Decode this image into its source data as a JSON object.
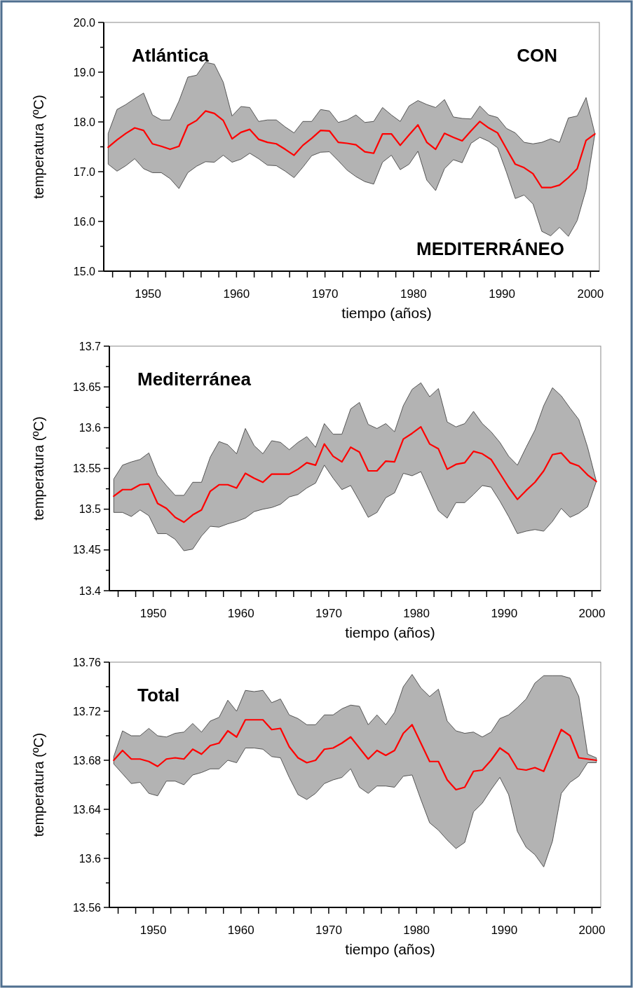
{
  "chart_data": [
    {
      "type": "line",
      "title": "Atlántica",
      "xlabel": "tiempo (años)",
      "ylabel": "temperatura (ºC)",
      "annotations": [
        "CON",
        "MEDITERRÁNEO"
      ],
      "x": [
        1945.5,
        1946.5,
        1947.5,
        1948.5,
        1949.5,
        1950.5,
        1951.5,
        1952.5,
        1953.5,
        1954.5,
        1955.5,
        1956.5,
        1957.5,
        1958.5,
        1959.5,
        1960.5,
        1961.5,
        1962.5,
        1963.5,
        1964.5,
        1965.5,
        1966.5,
        1967.5,
        1968.5,
        1969.5,
        1970.5,
        1971.5,
        1972.5,
        1973.5,
        1974.5,
        1975.5,
        1976.5,
        1977.5,
        1978.5,
        1979.5,
        1980.5,
        1981.5,
        1982.5,
        1983.5,
        1984.5,
        1985.5,
        1986.5,
        1987.5,
        1988.5,
        1989.5,
        1990.5,
        1991.5,
        1992.5,
        1993.5,
        1994.5,
        1995.5,
        1996.5,
        1997.5,
        1998.5,
        1999.5,
        2000.5
      ],
      "xlim": [
        1945,
        2001
      ],
      "xticks": [
        {
          "value": 1946,
          "label": null
        },
        {
          "value": 1948,
          "label": null
        },
        1950,
        {
          "value": 1952,
          "label": null
        },
        {
          "value": 1954,
          "label": null
        },
        {
          "value": 1956,
          "label": null
        },
        {
          "value": 1958,
          "label": null
        },
        1960,
        {
          "value": 1962,
          "label": null
        },
        {
          "value": 1964,
          "label": null
        },
        {
          "value": 1966,
          "label": null
        },
        {
          "value": 1968,
          "label": null
        },
        1970,
        {
          "value": 1972,
          "label": null
        },
        {
          "value": 1974,
          "label": null
        },
        {
          "value": 1976,
          "label": null
        },
        {
          "value": 1978,
          "label": null
        },
        1980,
        {
          "value": 1982,
          "label": null
        },
        {
          "value": 1984,
          "label": null
        },
        {
          "value": 1986,
          "label": null
        },
        {
          "value": 1988,
          "label": null
        },
        1990,
        {
          "value": 1992,
          "label": null
        },
        {
          "value": 1994,
          "label": null
        },
        {
          "value": 1996,
          "label": null
        },
        {
          "value": 1998,
          "label": null
        },
        2000
      ],
      "ylim": [
        15,
        20
      ],
      "yticks": [
        {
          "value": 15,
          "label": "15.0"
        },
        {
          "value": 15.5,
          "label": null
        },
        {
          "value": 16,
          "label": "16.0"
        },
        {
          "value": 16.5,
          "label": null
        },
        {
          "value": 17,
          "label": "17.0"
        },
        {
          "value": 17.5,
          "label": null
        },
        {
          "value": 18,
          "label": "18.0"
        },
        {
          "value": 18.5,
          "label": null
        },
        {
          "value": 19,
          "label": "19.0"
        },
        {
          "value": 19.5,
          "label": null
        },
        {
          "value": 20,
          "label": "20.0"
        }
      ],
      "series": [
        {
          "color": "#ff0000",
          "values": [
            17.49,
            17.64,
            17.77,
            17.88,
            17.83,
            17.56,
            17.51,
            17.45,
            17.51,
            17.93,
            18.03,
            18.22,
            18.17,
            18.03,
            17.66,
            17.79,
            17.85,
            17.65,
            17.59,
            17.56,
            17.45,
            17.33,
            17.53,
            17.67,
            17.83,
            17.82,
            17.59,
            17.57,
            17.54,
            17.4,
            17.37,
            17.76,
            17.76,
            17.53,
            17.74,
            17.94,
            17.59,
            17.45,
            17.77,
            17.69,
            17.62,
            17.82,
            18.01,
            17.88,
            17.78,
            17.46,
            17.15,
            17.08,
            16.96,
            16.68,
            16.68,
            16.73,
            16.88,
            17.06,
            17.63,
            17.76
          ],
          "upper": [
            17.77,
            18.25,
            18.35,
            18.47,
            18.58,
            18.14,
            18.04,
            18.04,
            18.42,
            18.9,
            18.94,
            19.2,
            19.16,
            18.8,
            18.12,
            18.31,
            18.29,
            18.01,
            18.04,
            18.04,
            17.9,
            17.78,
            18.01,
            18.01,
            18.25,
            18.22,
            17.99,
            18.04,
            18.14,
            17.99,
            18.01,
            18.29,
            18.14,
            18.01,
            18.32,
            18.43,
            18.35,
            18.29,
            18.45,
            18.1,
            18.07,
            18.06,
            18.32,
            18.14,
            18.09,
            17.87,
            17.78,
            17.59,
            17.56,
            17.59,
            17.66,
            17.59,
            18.08,
            18.12,
            18.49,
            17.76
          ],
          "lower": [
            17.15,
            17.01,
            17.12,
            17.26,
            17.06,
            16.98,
            16.98,
            16.86,
            16.66,
            16.98,
            17.11,
            17.2,
            17.19,
            17.33,
            17.19,
            17.25,
            17.37,
            17.26,
            17.13,
            17.12,
            17.01,
            16.88,
            17.09,
            17.32,
            17.39,
            17.4,
            17.22,
            17.03,
            16.9,
            16.8,
            16.75,
            17.19,
            17.33,
            17.04,
            17.15,
            17.41,
            16.83,
            16.62,
            17.06,
            17.24,
            17.18,
            17.57,
            17.69,
            17.61,
            17.48,
            16.99,
            16.46,
            16.53,
            16.35,
            15.8,
            15.71,
            15.88,
            15.7,
            16.02,
            16.64,
            17.76
          ]
        }
      ]
    },
    {
      "type": "line",
      "title": "Mediterránea",
      "xlabel": "tiempo (años)",
      "ylabel": "temperatura (ºC)",
      "x": [
        1945.5,
        1946.5,
        1947.5,
        1948.5,
        1949.5,
        1950.5,
        1951.5,
        1952.5,
        1953.5,
        1954.5,
        1955.5,
        1956.5,
        1957.5,
        1958.5,
        1959.5,
        1960.5,
        1961.5,
        1962.5,
        1963.5,
        1964.5,
        1965.5,
        1966.5,
        1967.5,
        1968.5,
        1969.5,
        1970.5,
        1971.5,
        1972.5,
        1973.5,
        1974.5,
        1975.5,
        1976.5,
        1977.5,
        1978.5,
        1979.5,
        1980.5,
        1981.5,
        1982.5,
        1983.5,
        1984.5,
        1985.5,
        1986.5,
        1987.5,
        1988.5,
        1989.5,
        1990.5,
        1991.5,
        1992.5,
        1993.5,
        1994.5,
        1995.5,
        1996.5,
        1997.5,
        1998.5,
        1999.5,
        2000.5
      ],
      "xlim": [
        1945,
        2001
      ],
      "xticks": [
        {
          "value": 1946,
          "label": null
        },
        {
          "value": 1948,
          "label": null
        },
        1950,
        {
          "value": 1952,
          "label": null
        },
        {
          "value": 1954,
          "label": null
        },
        {
          "value": 1956,
          "label": null
        },
        {
          "value": 1958,
          "label": null
        },
        1960,
        {
          "value": 1962,
          "label": null
        },
        {
          "value": 1964,
          "label": null
        },
        {
          "value": 1966,
          "label": null
        },
        {
          "value": 1968,
          "label": null
        },
        1970,
        {
          "value": 1972,
          "label": null
        },
        {
          "value": 1974,
          "label": null
        },
        {
          "value": 1976,
          "label": null
        },
        {
          "value": 1978,
          "label": null
        },
        1980,
        {
          "value": 1982,
          "label": null
        },
        {
          "value": 1984,
          "label": null
        },
        {
          "value": 1986,
          "label": null
        },
        {
          "value": 1988,
          "label": null
        },
        1990,
        {
          "value": 1992,
          "label": null
        },
        {
          "value": 1994,
          "label": null
        },
        {
          "value": 1996,
          "label": null
        },
        {
          "value": 1998,
          "label": null
        },
        2000
      ],
      "ylim": [
        13.4,
        13.7
      ],
      "yticks": [
        13.4,
        {
          "value": 13.425,
          "label": null
        },
        13.45,
        {
          "value": 13.475,
          "label": null
        },
        13.5,
        {
          "value": 13.525,
          "label": null
        },
        13.55,
        {
          "value": 13.575,
          "label": null
        },
        13.6,
        {
          "value": 13.625,
          "label": null
        },
        13.65,
        {
          "value": 13.675,
          "label": null
        },
        13.7
      ],
      "series": [
        {
          "color": "#ff0000",
          "values": [
            13.516,
            13.524,
            13.524,
            13.53,
            13.531,
            13.507,
            13.501,
            13.49,
            13.484,
            13.493,
            13.499,
            13.522,
            13.53,
            13.53,
            13.526,
            13.544,
            13.538,
            13.533,
            13.543,
            13.543,
            13.543,
            13.549,
            13.557,
            13.554,
            13.58,
            13.565,
            13.558,
            13.576,
            13.57,
            13.547,
            13.547,
            13.559,
            13.558,
            13.586,
            13.593,
            13.601,
            13.58,
            13.574,
            13.549,
            13.555,
            13.557,
            13.571,
            13.568,
            13.561,
            13.544,
            13.527,
            13.512,
            13.523,
            13.533,
            13.547,
            13.567,
            13.569,
            13.557,
            13.553,
            13.542,
            13.534
          ],
          "upper": [
            13.537,
            13.554,
            13.558,
            13.561,
            13.569,
            13.542,
            13.529,
            13.517,
            13.517,
            13.533,
            13.533,
            13.564,
            13.583,
            13.579,
            13.568,
            13.599,
            13.578,
            13.568,
            13.584,
            13.582,
            13.573,
            13.582,
            13.589,
            13.576,
            13.605,
            13.592,
            13.592,
            13.623,
            13.631,
            13.604,
            13.599,
            13.605,
            13.595,
            13.627,
            13.647,
            13.655,
            13.638,
            13.648,
            13.607,
            13.601,
            13.605,
            13.62,
            13.605,
            13.595,
            13.582,
            13.565,
            13.554,
            13.576,
            13.597,
            13.627,
            13.649,
            13.639,
            13.624,
            13.61,
            13.576,
            13.534
          ],
          "lower": [
            13.496,
            13.496,
            13.491,
            13.499,
            13.492,
            13.47,
            13.47,
            13.463,
            13.449,
            13.451,
            13.467,
            13.479,
            13.478,
            13.482,
            13.485,
            13.489,
            13.497,
            13.5,
            13.502,
            13.506,
            13.515,
            13.518,
            13.526,
            13.532,
            13.554,
            13.538,
            13.524,
            13.529,
            13.51,
            13.49,
            13.496,
            13.514,
            13.52,
            13.544,
            13.541,
            13.546,
            13.522,
            13.498,
            13.489,
            13.508,
            13.508,
            13.518,
            13.529,
            13.527,
            13.51,
            13.491,
            13.47,
            13.473,
            13.475,
            13.473,
            13.485,
            13.501,
            13.49,
            13.495,
            13.503,
            13.534
          ]
        }
      ]
    },
    {
      "type": "line",
      "title": "Total",
      "xlabel": "tiempo (años)",
      "ylabel": "temperatura (ºC)",
      "x": [
        1945.5,
        1946.5,
        1947.5,
        1948.5,
        1949.5,
        1950.5,
        1951.5,
        1952.5,
        1953.5,
        1954.5,
        1955.5,
        1956.5,
        1957.5,
        1958.5,
        1959.5,
        1960.5,
        1961.5,
        1962.5,
        1963.5,
        1964.5,
        1965.5,
        1966.5,
        1967.5,
        1968.5,
        1969.5,
        1970.5,
        1971.5,
        1972.5,
        1973.5,
        1974.5,
        1975.5,
        1976.5,
        1977.5,
        1978.5,
        1979.5,
        1980.5,
        1981.5,
        1982.5,
        1983.5,
        1984.5,
        1985.5,
        1986.5,
        1987.5,
        1988.5,
        1989.5,
        1990.5,
        1991.5,
        1992.5,
        1993.5,
        1994.5,
        1995.5,
        1996.5,
        1997.5,
        1998.5,
        1999.5,
        2000.5
      ],
      "xlim": [
        1945,
        2001
      ],
      "xticks": [
        {
          "value": 1946,
          "label": null
        },
        {
          "value": 1948,
          "label": null
        },
        1950,
        {
          "value": 1952,
          "label": null
        },
        {
          "value": 1954,
          "label": null
        },
        {
          "value": 1956,
          "label": null
        },
        {
          "value": 1958,
          "label": null
        },
        1960,
        {
          "value": 1962,
          "label": null
        },
        {
          "value": 1964,
          "label": null
        },
        {
          "value": 1966,
          "label": null
        },
        {
          "value": 1968,
          "label": null
        },
        1970,
        {
          "value": 1972,
          "label": null
        },
        {
          "value": 1974,
          "label": null
        },
        {
          "value": 1976,
          "label": null
        },
        {
          "value": 1978,
          "label": null
        },
        1980,
        {
          "value": 1982,
          "label": null
        },
        {
          "value": 1984,
          "label": null
        },
        {
          "value": 1986,
          "label": null
        },
        {
          "value": 1988,
          "label": null
        },
        1990,
        {
          "value": 1992,
          "label": null
        },
        {
          "value": 1994,
          "label": null
        },
        {
          "value": 1996,
          "label": null
        },
        {
          "value": 1998,
          "label": null
        },
        2000
      ],
      "ylim": [
        13.56,
        13.76
      ],
      "yticks": [
        13.56,
        {
          "value": 13.58,
          "label": null
        },
        13.6,
        {
          "value": 13.62,
          "label": null
        },
        13.64,
        {
          "value": 13.66,
          "label": null
        },
        13.68,
        {
          "value": 13.7,
          "label": null
        },
        13.72,
        {
          "value": 13.74,
          "label": null
        },
        13.76
      ],
      "series": [
        {
          "color": "#ff0000",
          "values": [
            13.68,
            13.688,
            13.681,
            13.681,
            13.679,
            13.675,
            13.681,
            13.682,
            13.681,
            13.689,
            13.685,
            13.692,
            13.694,
            13.704,
            13.699,
            13.713,
            13.713,
            13.713,
            13.705,
            13.706,
            13.691,
            13.682,
            13.678,
            13.68,
            13.689,
            13.69,
            13.694,
            13.699,
            13.69,
            13.681,
            13.688,
            13.684,
            13.688,
            13.702,
            13.709,
            13.694,
            13.679,
            13.679,
            13.664,
            13.656,
            13.658,
            13.671,
            13.672,
            13.68,
            13.69,
            13.685,
            13.673,
            13.672,
            13.674,
            13.671,
            13.688,
            13.705,
            13.7,
            13.682,
            13.681,
            13.68
          ],
          "upper": [
            13.683,
            13.704,
            13.7,
            13.7,
            13.706,
            13.7,
            13.699,
            13.702,
            13.703,
            13.71,
            13.703,
            13.712,
            13.715,
            13.729,
            13.72,
            13.737,
            13.736,
            13.737,
            13.727,
            13.73,
            13.717,
            13.714,
            13.709,
            13.709,
            13.717,
            13.717,
            13.722,
            13.725,
            13.724,
            13.709,
            13.717,
            13.709,
            13.719,
            13.74,
            13.75,
            13.739,
            13.732,
            13.738,
            13.712,
            13.704,
            13.702,
            13.703,
            13.699,
            13.703,
            13.714,
            13.717,
            13.723,
            13.73,
            13.743,
            13.749,
            13.749,
            13.749,
            13.747,
            13.732,
            13.685,
            13.682
          ],
          "lower": [
            13.677,
            13.669,
            13.661,
            13.662,
            13.653,
            13.651,
            13.663,
            13.663,
            13.66,
            13.668,
            13.67,
            13.673,
            13.673,
            13.68,
            13.678,
            13.69,
            13.69,
            13.689,
            13.683,
            13.682,
            13.666,
            13.652,
            13.648,
            13.653,
            13.661,
            13.664,
            13.666,
            13.673,
            13.658,
            13.653,
            13.659,
            13.659,
            13.658,
            13.667,
            13.668,
            13.648,
            13.629,
            13.623,
            13.615,
            13.608,
            13.613,
            13.638,
            13.645,
            13.656,
            13.666,
            13.652,
            13.622,
            13.609,
            13.603,
            13.593,
            13.614,
            13.653,
            13.662,
            13.667,
            13.678,
            13.678
          ]
        }
      ]
    }
  ]
}
